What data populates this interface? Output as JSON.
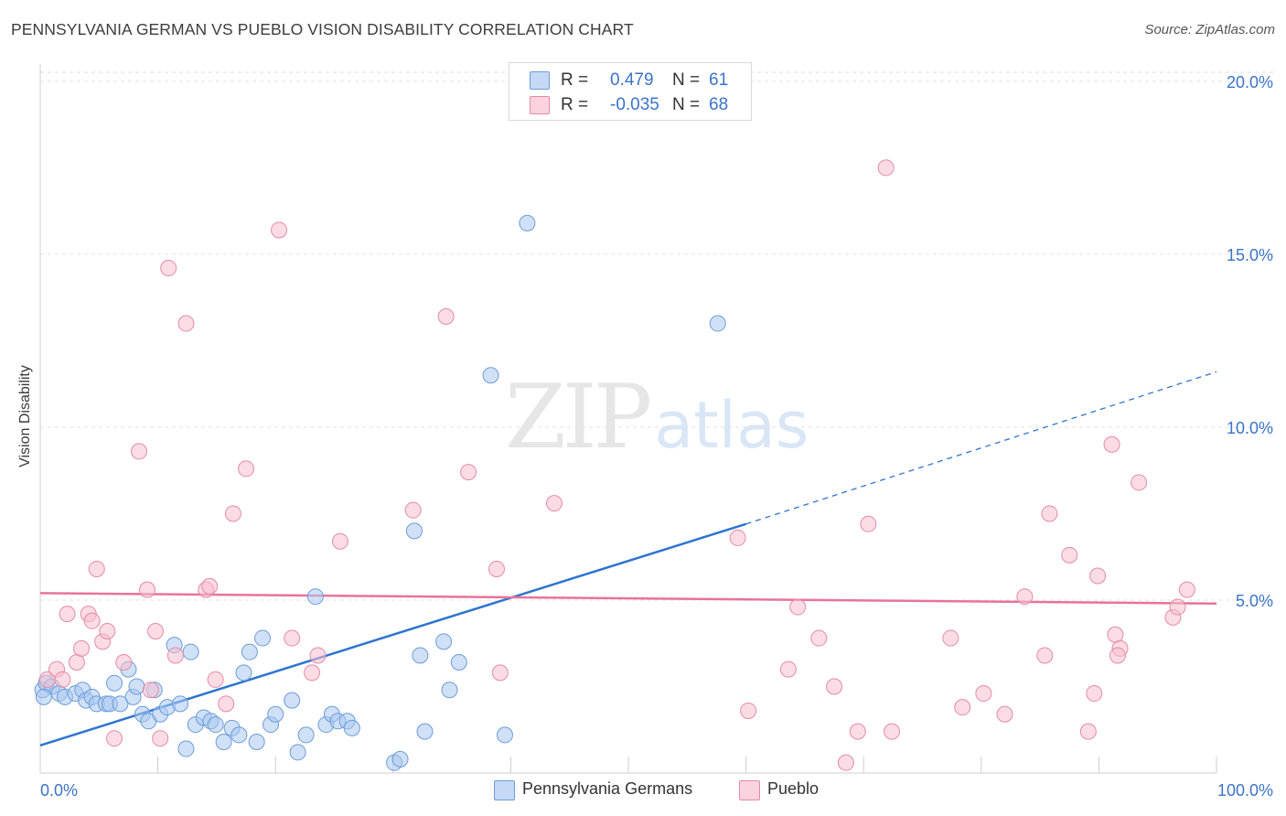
{
  "title": "PENNSYLVANIA GERMAN VS PUEBLO VISION DISABILITY CORRELATION CHART",
  "source": "Source: ZipAtlas.com",
  "watermark": {
    "zip": "ZIP",
    "atlas": "atlas"
  },
  "stats": [
    {
      "r_label": "R =",
      "r_value": "0.479",
      "n_label": "N =",
      "n_value": "61",
      "color": "#a9c8f0"
    },
    {
      "r_label": "R =",
      "r_value": "-0.035",
      "n_label": "N =",
      "n_value": "68",
      "color": "#f8bfcf"
    }
  ],
  "legend": [
    {
      "label": "Pennsylvania Germans",
      "color": "#a9c8f0"
    },
    {
      "label": "Pueblo",
      "color": "#f8bfcf"
    }
  ],
  "chart_data": {
    "type": "scatter",
    "title": "PENNSYLVANIA GERMAN VS PUEBLO VISION DISABILITY CORRELATION CHART",
    "xlabel": "",
    "ylabel": "Vision Disability",
    "xlim": [
      0,
      100
    ],
    "ylim": [
      0,
      20.5
    ],
    "x_tick_labels": [
      {
        "value": 0,
        "label": "0.0%"
      },
      {
        "value": 100,
        "label": "100.0%"
      }
    ],
    "y_tick_labels": [
      {
        "value": 5,
        "label": "5.0%"
      },
      {
        "value": 10,
        "label": "10.0%"
      },
      {
        "value": 15,
        "label": "15.0%"
      },
      {
        "value": 20,
        "label": "20.0%"
      }
    ],
    "y_gridlines": [
      5,
      10,
      15,
      20
    ],
    "x_minor_ticks": [
      10,
      20,
      30,
      40,
      50,
      60,
      70,
      80,
      90,
      100
    ],
    "series": [
      {
        "name": "Pennsylvania Germans",
        "color": "#a9c8f0",
        "stroke": "#6c9bd8",
        "trend": {
          "x0": 0,
          "y0": 0.8,
          "x1": 60,
          "y1": 7.2,
          "dash_x1": 100,
          "dash_y1": 11.6,
          "color": "#2e74d0"
        },
        "points": [
          [
            0.2,
            2.4
          ],
          [
            0.5,
            2.6
          ],
          [
            1,
            2.5
          ],
          [
            1.6,
            2.3
          ],
          [
            2.1,
            2.2
          ],
          [
            3,
            2.3
          ],
          [
            3.6,
            2.4
          ],
          [
            3.9,
            2.1
          ],
          [
            4.4,
            2.2
          ],
          [
            4.8,
            2.0
          ],
          [
            5.6,
            2.0
          ],
          [
            5.9,
            2.0
          ],
          [
            6.3,
            2.6
          ],
          [
            6.8,
            2.0
          ],
          [
            7.5,
            3.0
          ],
          [
            7.9,
            2.2
          ],
          [
            8.2,
            2.5
          ],
          [
            8.7,
            1.7
          ],
          [
            9.2,
            1.5
          ],
          [
            9.7,
            2.4
          ],
          [
            10.2,
            1.7
          ],
          [
            10.8,
            1.9
          ],
          [
            11.4,
            3.7
          ],
          [
            11.9,
            2.0
          ],
          [
            12.4,
            0.7
          ],
          [
            12.8,
            3.5
          ],
          [
            13.2,
            1.4
          ],
          [
            13.9,
            1.6
          ],
          [
            14.5,
            1.5
          ],
          [
            14.9,
            1.4
          ],
          [
            15.6,
            0.9
          ],
          [
            16.3,
            1.3
          ],
          [
            16.9,
            1.1
          ],
          [
            17.3,
            2.9
          ],
          [
            17.8,
            3.5
          ],
          [
            18.4,
            0.9
          ],
          [
            18.9,
            3.9
          ],
          [
            19.6,
            1.4
          ],
          [
            20,
            1.7
          ],
          [
            21.4,
            2.1
          ],
          [
            21.9,
            0.6
          ],
          [
            22.6,
            1.1
          ],
          [
            23.4,
            5.1
          ],
          [
            24.3,
            1.4
          ],
          [
            24.8,
            1.7
          ],
          [
            25.3,
            1.5
          ],
          [
            26.1,
            1.5
          ],
          [
            26.5,
            1.3
          ],
          [
            30.1,
            0.3
          ],
          [
            30.6,
            0.4
          ],
          [
            31.8,
            7.0
          ],
          [
            32.3,
            3.4
          ],
          [
            32.7,
            1.2
          ],
          [
            34.3,
            3.8
          ],
          [
            34.8,
            2.4
          ],
          [
            35.6,
            3.2
          ],
          [
            38.3,
            11.5
          ],
          [
            39.5,
            1.1
          ],
          [
            41.4,
            15.9
          ],
          [
            57.6,
            13.0
          ],
          [
            0.3,
            2.2
          ]
        ]
      },
      {
        "name": "Pueblo",
        "color": "#f8bfcf",
        "stroke": "#e58aa6",
        "trend": {
          "x0": 0,
          "y0": 5.2,
          "x1": 100,
          "y1": 4.9,
          "color": "#e8739a"
        },
        "points": [
          [
            0.6,
            2.7
          ],
          [
            1.4,
            3.0
          ],
          [
            1.9,
            2.7
          ],
          [
            2.3,
            4.6
          ],
          [
            3.1,
            3.2
          ],
          [
            3.5,
            3.6
          ],
          [
            4.1,
            4.6
          ],
          [
            4.4,
            4.4
          ],
          [
            4.8,
            5.9
          ],
          [
            5.3,
            3.8
          ],
          [
            5.7,
            4.1
          ],
          [
            6.3,
            1.0
          ],
          [
            7.1,
            3.2
          ],
          [
            8.4,
            9.3
          ],
          [
            9.1,
            5.3
          ],
          [
            9.4,
            2.4
          ],
          [
            9.8,
            4.1
          ],
          [
            10.2,
            1.0
          ],
          [
            10.9,
            14.6
          ],
          [
            11.5,
            3.4
          ],
          [
            12.4,
            13.0
          ],
          [
            14.1,
            5.3
          ],
          [
            14.4,
            5.4
          ],
          [
            14.9,
            2.7
          ],
          [
            15.8,
            2.0
          ],
          [
            16.4,
            7.5
          ],
          [
            17.5,
            8.8
          ],
          [
            20.3,
            15.7
          ],
          [
            21.4,
            3.9
          ],
          [
            23.1,
            2.9
          ],
          [
            23.6,
            3.4
          ],
          [
            25.5,
            6.7
          ],
          [
            31.7,
            7.6
          ],
          [
            34.5,
            13.2
          ],
          [
            36.4,
            8.7
          ],
          [
            38.8,
            5.9
          ],
          [
            39.1,
            2.9
          ],
          [
            43.7,
            7.8
          ],
          [
            59.3,
            6.8
          ],
          [
            60.2,
            1.8
          ],
          [
            63.6,
            3.0
          ],
          [
            64.4,
            4.8
          ],
          [
            66.2,
            3.9
          ],
          [
            67.5,
            2.5
          ],
          [
            68.5,
            0.3
          ],
          [
            69.5,
            1.2
          ],
          [
            70.4,
            7.2
          ],
          [
            71.9,
            17.5
          ],
          [
            72.4,
            1.2
          ],
          [
            77.4,
            3.9
          ],
          [
            78.4,
            1.9
          ],
          [
            80.2,
            2.3
          ],
          [
            82,
            1.7
          ],
          [
            83.7,
            5.1
          ],
          [
            85.4,
            3.4
          ],
          [
            85.8,
            7.5
          ],
          [
            87.5,
            6.3
          ],
          [
            89.1,
            1.2
          ],
          [
            89.6,
            2.3
          ],
          [
            89.9,
            5.7
          ],
          [
            91.1,
            9.5
          ],
          [
            91.4,
            4.0
          ],
          [
            91.8,
            3.6
          ],
          [
            93.4,
            8.4
          ],
          [
            96.3,
            4.5
          ],
          [
            96.7,
            4.8
          ],
          [
            97.5,
            5.3
          ],
          [
            91.6,
            3.4
          ]
        ]
      }
    ]
  }
}
